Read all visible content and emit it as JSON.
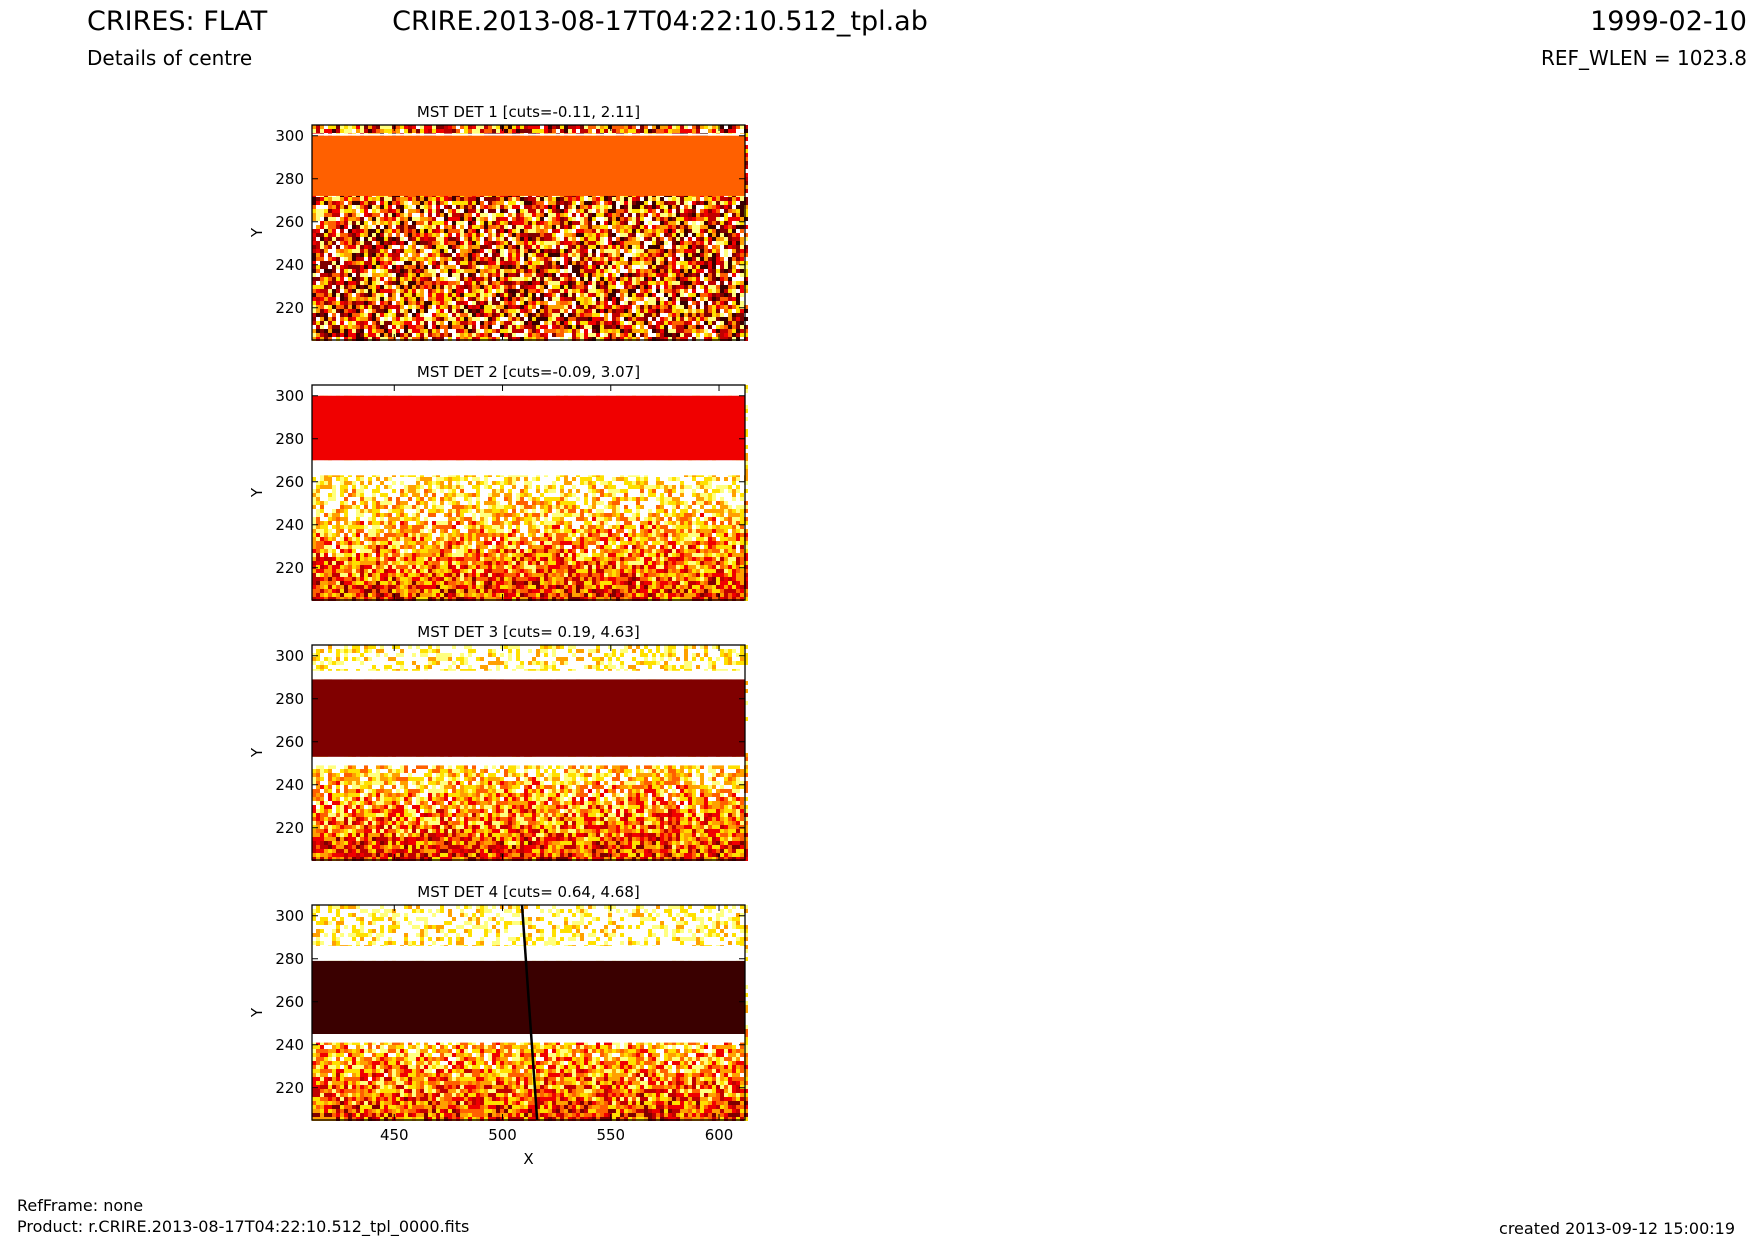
{
  "header": {
    "left_title": "CRIRES: FLAT",
    "left_subtitle": "Details of centre",
    "center_title": "CRIRE.2013-08-17T04:22:10.512_tpl.ab",
    "right_title": "1999-02-10",
    "right_subtitle": "REF_WLEN = 1023.8"
  },
  "footer": {
    "refframe": "RefFrame: none",
    "product": "Product: r.CRIRE.2013-08-17T04:22:10.512_tpl_0000.fits",
    "created": "created 2013-09-12 15:00:19"
  },
  "colors": {
    "colormap": [
      "#3a0000",
      "#800000",
      "#c00000",
      "#f00000",
      "#ff6000",
      "#ffa000",
      "#ffe000",
      "#ffff80",
      "#ffffff"
    ]
  },
  "chart_data": [
    {
      "type": "heatmap",
      "title": "MST DET 1 [cuts=-0.11, 2.11]",
      "xlabel": "",
      "ylabel": "Y",
      "xlim": [
        412,
        612
      ],
      "ylim": [
        205,
        305
      ],
      "yticks": [
        220,
        240,
        260,
        280,
        300
      ],
      "xticks": [],
      "bands": [
        {
          "y_from": 272,
          "y_to": 300,
          "color": "#ff6000"
        }
      ],
      "gaps": [
        {
          "y_from": 300,
          "y_to": 301
        }
      ]
    },
    {
      "type": "heatmap",
      "title": "MST DET 2 [cuts=-0.09, 3.07]",
      "xlabel": "",
      "ylabel": "Y",
      "xlim": [
        412,
        612
      ],
      "ylim": [
        205,
        305
      ],
      "yticks": [
        220,
        240,
        260,
        280,
        300
      ],
      "xticks": [],
      "bands": [
        {
          "y_from": 270,
          "y_to": 300,
          "color": "#f00000"
        }
      ],
      "gaps": [
        {
          "y_from": 263,
          "y_to": 270
        },
        {
          "y_from": 300,
          "y_to": 305
        }
      ]
    },
    {
      "type": "heatmap",
      "title": "MST DET 3 [cuts= 0.19, 4.63]",
      "xlabel": "",
      "ylabel": "Y",
      "xlim": [
        412,
        612
      ],
      "ylim": [
        205,
        305
      ],
      "yticks": [
        220,
        240,
        260,
        280,
        300
      ],
      "xticks": [],
      "bands": [
        {
          "y_from": 253,
          "y_to": 289,
          "color": "#800000"
        }
      ],
      "gaps": [
        {
          "y_from": 289,
          "y_to": 293
        },
        {
          "y_from": 249,
          "y_to": 253
        }
      ]
    },
    {
      "type": "heatmap",
      "title": "MST DET 4 [cuts= 0.64, 4.68]",
      "xlabel": "X",
      "ylabel": "Y",
      "xlim": [
        412,
        612
      ],
      "ylim": [
        205,
        305
      ],
      "yticks": [
        220,
        240,
        260,
        280,
        300
      ],
      "xticks": [
        450,
        500,
        550,
        600
      ],
      "bands": [
        {
          "y_from": 245,
          "y_to": 279,
          "color": "#3a0000"
        }
      ],
      "gaps": [
        {
          "y_from": 279,
          "y_to": 286
        },
        {
          "y_from": 241,
          "y_to": 245
        }
      ]
    }
  ]
}
